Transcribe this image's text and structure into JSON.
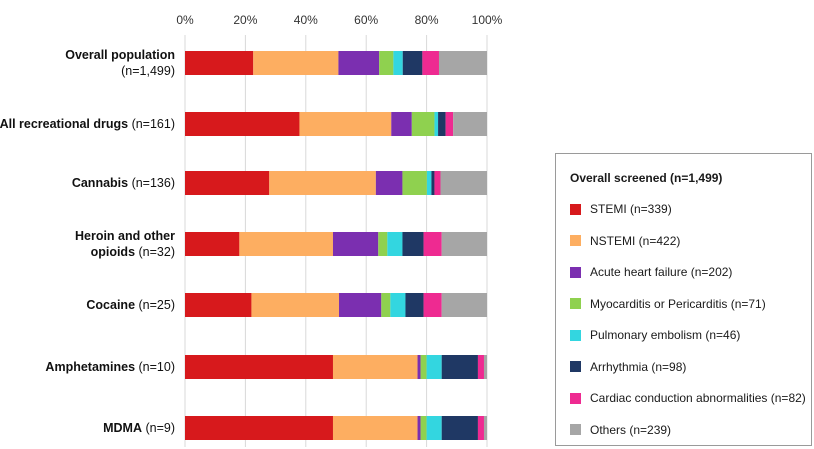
{
  "chart_data": {
    "type": "bar",
    "orientation": "horizontal",
    "stacked": "100%",
    "x_ticks": [
      "0%",
      "20%",
      "40%",
      "60%",
      "80%",
      "100%"
    ],
    "xlim": [
      0,
      100
    ],
    "grid": true,
    "categories": [
      {
        "name": "Overall population",
        "n": "(n=1,499)"
      },
      {
        "name": "All recreational drugs",
        "n": "(n=161)"
      },
      {
        "name": "Cannabis",
        "n": "(n=136)"
      },
      {
        "name": "Heroin and other opioids",
        "n": "(n=32)"
      },
      {
        "name": "Cocaine",
        "n": "(n=25)"
      },
      {
        "name": "Amphetamines",
        "n": "(n=10)"
      },
      {
        "name": "MDMA",
        "n": "(n=9)"
      }
    ],
    "series": [
      {
        "name": "STEMI (n=339)",
        "color": "#d7191c",
        "values": [
          22.6,
          37.9,
          27.9,
          18.0,
          22.0,
          49.0,
          49.0
        ]
      },
      {
        "name": "NSTEMI (n=422)",
        "color": "#fdae61",
        "values": [
          28.2,
          30.4,
          35.3,
          31.0,
          29.0,
          28.0,
          28.0
        ]
      },
      {
        "name": "Acute heart failure (n=202)",
        "color": "#7b2fb0",
        "values": [
          13.5,
          6.8,
          8.8,
          15.0,
          14.0,
          1.0,
          1.0
        ]
      },
      {
        "name": "Myocarditis or Pericarditis (n=71)",
        "color": "#8fd14f",
        "values": [
          4.7,
          7.5,
          8.1,
          3.0,
          3.0,
          2.0,
          2.0
        ]
      },
      {
        "name": "Pulmonary embolism (n=46)",
        "color": "#33d6e0",
        "values": [
          3.1,
          1.2,
          1.5,
          5.0,
          5.0,
          5.0,
          5.0
        ]
      },
      {
        "name": "Arrhythmia (n=98)",
        "color": "#1f3864",
        "values": [
          6.5,
          2.5,
          1.0,
          7.0,
          6.0,
          12.0,
          12.0
        ]
      },
      {
        "name": "Cardiac conduction abnormalities (n=82)",
        "color": "#ee2a91",
        "values": [
          5.5,
          2.5,
          2.0,
          6.0,
          6.0,
          2.0,
          2.0
        ]
      },
      {
        "name": "Others (n=239)",
        "color": "#a6a6a6",
        "values": [
          15.9,
          11.2,
          15.4,
          15.0,
          15.0,
          1.0,
          1.0
        ]
      }
    ],
    "legend": {
      "title": "Overall screened (n=1,499)",
      "position": "right"
    }
  }
}
